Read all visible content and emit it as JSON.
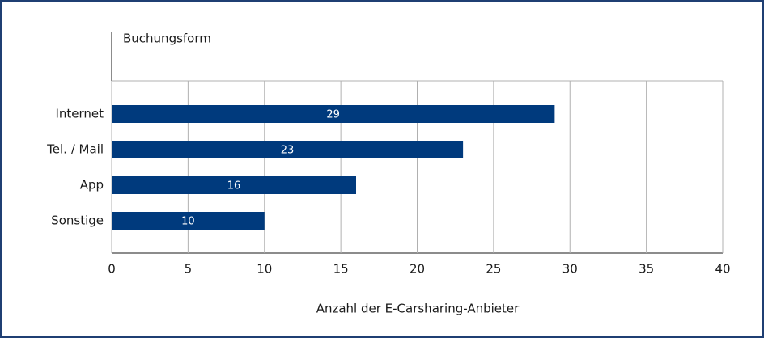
{
  "chart_data": {
    "type": "hbar",
    "y_axis_title": "Buchungsform",
    "x_axis_title": "Anzahl der E-Carsharing-Anbieter",
    "categories": [
      "Internet",
      "Tel. / Mail",
      "App",
      "Sonstige"
    ],
    "values": [
      29,
      23,
      16,
      10
    ],
    "color": "#003a7d",
    "xlim": [
      0,
      40
    ],
    "xticks": [
      0,
      5,
      10,
      15,
      20,
      25,
      30,
      35,
      40
    ],
    "grid": true
  }
}
